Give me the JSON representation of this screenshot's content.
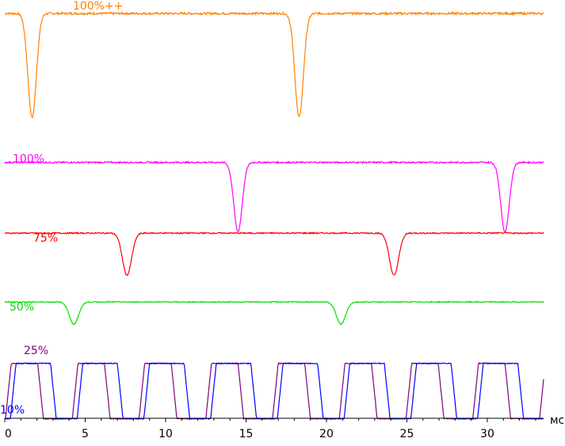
{
  "chart_data": {
    "type": "line",
    "x_unit": "мс",
    "xlim": [
      0,
      33.5
    ],
    "x_ticks": [
      0,
      5,
      10,
      15,
      20,
      25,
      30
    ],
    "x_tick_labels": [
      "0",
      "5",
      "10",
      "15",
      "20",
      "25",
      "30"
    ],
    "grid": false,
    "series": [
      {
        "name": "100%++",
        "color": "#ff8000",
        "kind": "dip",
        "baseline": 0.25,
        "dips": [
          1.7,
          18.3
        ],
        "dip_depth": 0.75,
        "dip_width": 0.55
      },
      {
        "name": "100%",
        "color": "#ff00ff",
        "kind": "dip",
        "baseline": 0.3,
        "dips": [
          14.5,
          31.1
        ],
        "dip_depth": 0.7,
        "dip_width": 0.55
      },
      {
        "name": "75%",
        "color": "#ff0000",
        "kind": "dip",
        "baseline": 0.4,
        "dips": [
          7.6,
          24.2
        ],
        "dip_depth": 0.5,
        "dip_width": 0.6
      },
      {
        "name": "50%",
        "color": "#00e000",
        "kind": "dip",
        "baseline": 0.4,
        "dips": [
          4.3,
          20.9
        ],
        "dip_depth": 0.35,
        "dip_width": 0.6
      },
      {
        "name": "25%",
        "color": "#800080",
        "kind": "square",
        "high_start": 4.2,
        "period": 4.15,
        "high_duration": 2.0
      },
      {
        "name": "10%",
        "color": "#0000ff",
        "kind": "square",
        "high_start": 0.35,
        "period": 4.15,
        "high_duration": 2.5
      }
    ]
  }
}
